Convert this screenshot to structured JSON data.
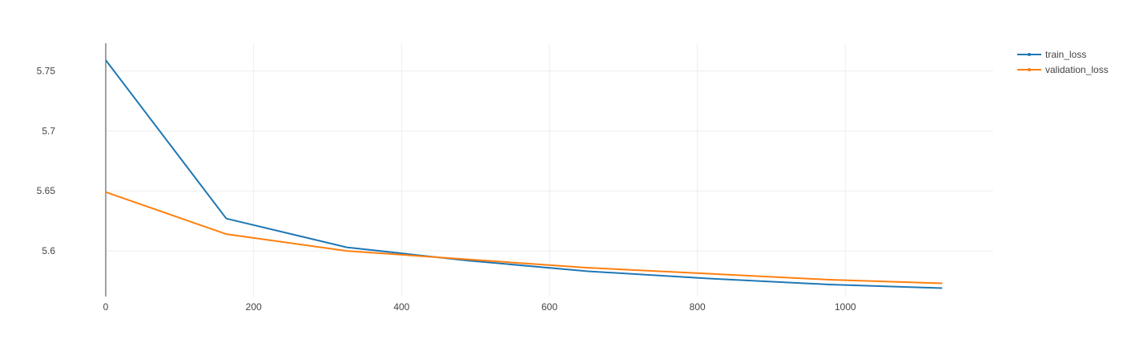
{
  "chart_data": {
    "type": "line",
    "title": "",
    "xlabel": "",
    "ylabel": "",
    "xlim": [
      0,
      1200
    ],
    "ylim": [
      5.562,
      5.773
    ],
    "xticks": [
      {
        "value": 0,
        "label": "0"
      },
      {
        "value": 200,
        "label": "200"
      },
      {
        "value": 400,
        "label": "400"
      },
      {
        "value": 600,
        "label": "600"
      },
      {
        "value": 800,
        "label": "800"
      },
      {
        "value": 1000,
        "label": "1000"
      }
    ],
    "yticks": [
      {
        "value": 5.6,
        "label": "5.6"
      },
      {
        "value": 5.65,
        "label": "5.65"
      },
      {
        "value": 5.7,
        "label": "5.7"
      },
      {
        "value": 5.75,
        "label": "5.75"
      }
    ],
    "grid": true,
    "legend_position": "top-right",
    "series": [
      {
        "name": "train_loss",
        "color": "#1f77b4",
        "x": [
          0,
          163,
          326,
          489,
          652,
          815,
          978,
          1131
        ],
        "y": [
          5.759,
          5.627,
          5.603,
          5.592,
          5.583,
          5.577,
          5.572,
          5.569
        ]
      },
      {
        "name": "validation_loss",
        "color": "#ff7f0e",
        "x": [
          0,
          163,
          326,
          489,
          652,
          815,
          978,
          1131
        ],
        "y": [
          5.649,
          5.614,
          5.6,
          5.593,
          5.586,
          5.581,
          5.576,
          5.573
        ]
      }
    ]
  }
}
